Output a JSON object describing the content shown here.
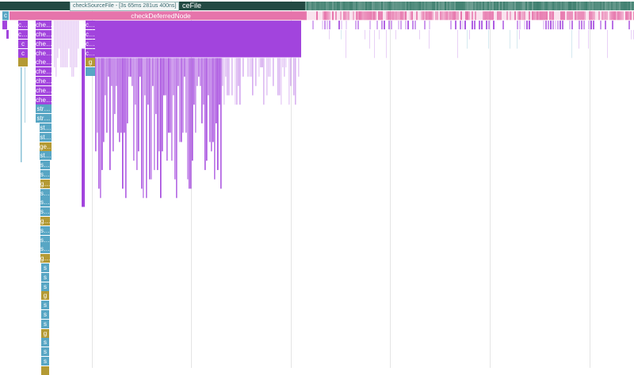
{
  "tooltip": {
    "text": "checkSourceFile - [3s 65ms 281us 400ns]"
  },
  "root_slice": {
    "label": "checkSourceFile",
    "visible_suffix": "ceFile"
  },
  "deferred_slice": {
    "label": "checkDeferredNode"
  },
  "first_slice": {
    "label": "c"
  },
  "colors": {
    "root_dark": "#234a43",
    "root_light": "#3f7f6f",
    "pink": "#e674ab",
    "purple": "#a244dd",
    "teal": "#58a6c4",
    "olive": "#b49a34",
    "gridline": "#e4e4e4"
  },
  "stacks": [
    {
      "name": "stack-a",
      "items": [
        {
          "label": "c…",
          "color": "purple"
        },
        {
          "label": "c…",
          "color": "purple"
        },
        {
          "label": "c",
          "color": "purple"
        },
        {
          "label": "c",
          "color": "purple"
        },
        {
          "label": "",
          "color": "olive"
        }
      ]
    },
    {
      "name": "stack-b",
      "items": [
        {
          "label": "che…",
          "color": "purple"
        },
        {
          "label": "che…",
          "color": "purple"
        },
        {
          "label": "che…",
          "color": "purple"
        },
        {
          "label": "che…",
          "color": "purple"
        },
        {
          "label": "che…",
          "color": "purple"
        },
        {
          "label": "che…",
          "color": "purple"
        },
        {
          "label": "che…",
          "color": "purple"
        },
        {
          "label": "che…",
          "color": "purple"
        },
        {
          "label": "che…",
          "color": "purple"
        },
        {
          "label": "str…",
          "color": "teal"
        },
        {
          "label": "str…",
          "color": "teal"
        },
        {
          "label": "st…",
          "color": "teal"
        },
        {
          "label": "st…",
          "color": "teal"
        },
        {
          "label": "ge…",
          "color": "olive"
        },
        {
          "label": "st…",
          "color": "teal"
        },
        {
          "label": "s…",
          "color": "teal"
        },
        {
          "label": "s…",
          "color": "teal"
        },
        {
          "label": "g…",
          "color": "olive"
        },
        {
          "label": "s…",
          "color": "teal"
        },
        {
          "label": "s…",
          "color": "teal"
        },
        {
          "label": "s…",
          "color": "teal"
        },
        {
          "label": "g…",
          "color": "olive"
        },
        {
          "label": "s…",
          "color": "teal"
        },
        {
          "label": "s…",
          "color": "teal"
        },
        {
          "label": "s…",
          "color": "teal"
        },
        {
          "label": "g…",
          "color": "olive"
        },
        {
          "label": "s",
          "color": "teal"
        },
        {
          "label": "s",
          "color": "teal"
        },
        {
          "label": "s",
          "color": "teal"
        },
        {
          "label": "g",
          "color": "olive"
        },
        {
          "label": "s",
          "color": "teal"
        },
        {
          "label": "s",
          "color": "teal"
        },
        {
          "label": "s",
          "color": "teal"
        },
        {
          "label": "g",
          "color": "olive"
        },
        {
          "label": "s",
          "color": "teal"
        },
        {
          "label": "s",
          "color": "teal"
        },
        {
          "label": "s",
          "color": "teal"
        },
        {
          "label": "",
          "color": "olive"
        }
      ]
    },
    {
      "name": "stack-c",
      "items": [
        {
          "label": "c…",
          "color": "purple"
        },
        {
          "label": "c…",
          "color": "purple"
        },
        {
          "label": "c…",
          "color": "purple"
        },
        {
          "label": "c…",
          "color": "purple"
        },
        {
          "label": "g",
          "color": "olive"
        },
        {
          "label": "",
          "color": "teal"
        }
      ]
    }
  ]
}
